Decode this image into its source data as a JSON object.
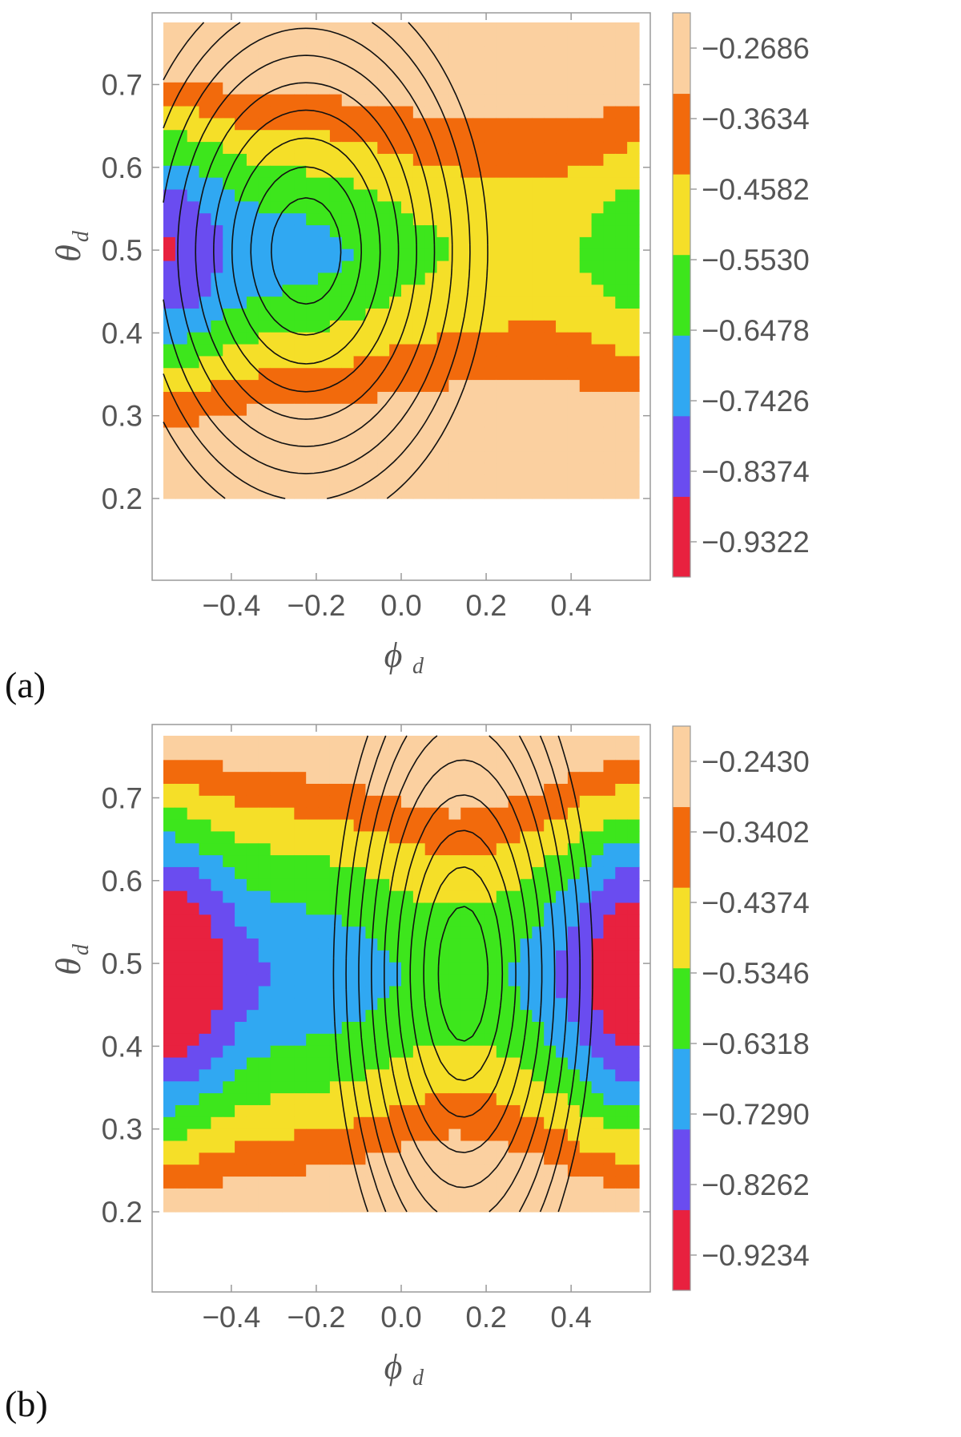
{
  "figure": {
    "panel_tags": [
      "(a)",
      "(b)"
    ]
  },
  "chart_data": [
    {
      "type": "heatmap",
      "panel": "(a)",
      "title": "",
      "xlabel": "ϕ",
      "xlabel_sub": "d",
      "ylabel": "θ",
      "ylabel_sub": "d",
      "xlim": [
        -0.56,
        0.56
      ],
      "ylim": [
        0.2,
        0.775
      ],
      "xticks": [
        -0.4,
        -0.2,
        0.0,
        0.2,
        0.4
      ],
      "xtick_labels": [
        "−0.4",
        "−0.2",
        "0.0",
        "0.2",
        "0.4"
      ],
      "yticks": [
        0.2,
        0.3,
        0.4,
        0.5,
        0.6,
        0.7
      ],
      "ytick_labels": [
        "0.2",
        "0.3",
        "0.4",
        "0.5",
        "0.6",
        "0.7"
      ],
      "colorbar": {
        "min": -0.9796,
        "max": -0.2212,
        "ticks": [
          -0.2686,
          -0.3634,
          -0.4582,
          -0.553,
          -0.6478,
          -0.7426,
          -0.8374,
          -0.9322
        ],
        "tick_labels": [
          "−0.2686",
          "−0.3634",
          "−0.4582",
          "−0.5530",
          "−0.6478",
          "−0.7426",
          "−0.8374",
          "−0.9322"
        ],
        "band_colors": [
          "#e8213f",
          "#6a4cf0",
          "#30a8f2",
          "#3de61c",
          "#f5df28",
          "#f26a0c",
          "#fbd0a0"
        ]
      },
      "contours": true,
      "grid": false
    },
    {
      "type": "heatmap",
      "panel": "(b)",
      "title": "",
      "xlabel": "ϕ",
      "xlabel_sub": "d",
      "ylabel": "θ",
      "ylabel_sub": "d",
      "xlim": [
        -0.56,
        0.56
      ],
      "ylim": [
        0.2,
        0.775
      ],
      "xticks": [
        -0.4,
        -0.2,
        0.0,
        0.2,
        0.4
      ],
      "xtick_labels": [
        "−0.4",
        "−0.2",
        "0.0",
        "0.2",
        "0.4"
      ],
      "yticks": [
        0.2,
        0.3,
        0.4,
        0.5,
        0.6,
        0.7
      ],
      "ytick_labels": [
        "0.2",
        "0.3",
        "0.4",
        "0.5",
        "0.6",
        "0.7"
      ],
      "colorbar": {
        "min": -0.972,
        "max": -0.1944,
        "ticks": [
          -0.243,
          -0.3402,
          -0.4374,
          -0.5346,
          -0.6318,
          -0.729,
          -0.8262,
          -0.9234
        ],
        "tick_labels": [
          "−0.2430",
          "−0.3402",
          "−0.4374",
          "−0.5346",
          "−0.6318",
          "−0.7290",
          "−0.8262",
          "−0.9234"
        ],
        "band_colors": [
          "#e8213f",
          "#6a4cf0",
          "#30a8f2",
          "#3de61c",
          "#f5df28",
          "#f26a0c",
          "#fbd0a0"
        ]
      },
      "contours": true,
      "grid": false
    }
  ]
}
